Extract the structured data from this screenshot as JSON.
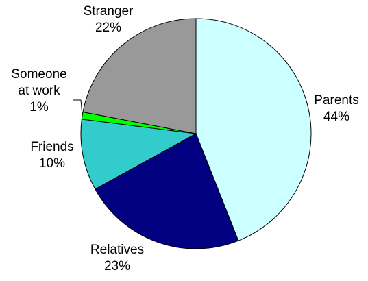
{
  "chart_data": {
    "type": "pie",
    "title": "",
    "start_angle_deg": 0,
    "direction": "clockwise",
    "slices": [
      {
        "label": "Parents",
        "value": 44,
        "value_label": "44%",
        "color": "#CCFFFF"
      },
      {
        "label": "Relatives",
        "value": 23,
        "value_label": "23%",
        "color": "#000080"
      },
      {
        "label": "Friends",
        "value": 10,
        "value_label": "10%",
        "color": "#33CCCC"
      },
      {
        "label": "Someone\nat work",
        "value": 1,
        "value_label": "1%",
        "color": "#00FF00"
      },
      {
        "label": "Stranger",
        "value": 22,
        "value_label": "22%",
        "color": "#999999"
      }
    ],
    "legend": "none",
    "labels_position": "outside"
  }
}
